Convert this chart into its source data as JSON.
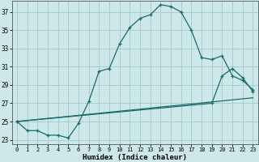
{
  "xlabel": "Humidex (Indice chaleur)",
  "background_color": "#cce8e8",
  "grid_color": "#aacccc",
  "line_color": "#1a6b6b",
  "xlim": [
    -0.5,
    23.5
  ],
  "ylim": [
    22.5,
    38.2
  ],
  "yticks": [
    23,
    25,
    27,
    29,
    31,
    33,
    35,
    37
  ],
  "xticks": [
    0,
    1,
    2,
    3,
    4,
    5,
    6,
    7,
    8,
    9,
    10,
    11,
    12,
    13,
    14,
    15,
    16,
    17,
    18,
    19,
    20,
    21,
    22,
    23
  ],
  "line1_x": [
    0,
    1,
    2,
    3,
    4,
    5,
    6,
    7,
    8,
    9,
    10,
    11,
    12,
    13,
    14,
    15,
    16,
    17,
    18,
    19,
    20,
    21,
    22,
    23
  ],
  "line1_y": [
    25.0,
    24.0,
    24.0,
    23.5,
    23.5,
    23.2,
    24.8,
    27.2,
    30.5,
    30.8,
    33.5,
    35.3,
    36.3,
    36.7,
    37.8,
    37.6,
    37.0,
    35.0,
    32.0,
    31.8,
    32.2,
    30.0,
    29.5,
    28.5
  ],
  "line2_x": [
    0,
    23
  ],
  "line2_y": [
    25.0,
    27.6
  ],
  "line3_x": [
    0,
    19,
    20,
    21,
    22,
    23
  ],
  "line3_y": [
    25.0,
    27.0,
    30.0,
    30.8,
    29.8,
    28.3
  ]
}
